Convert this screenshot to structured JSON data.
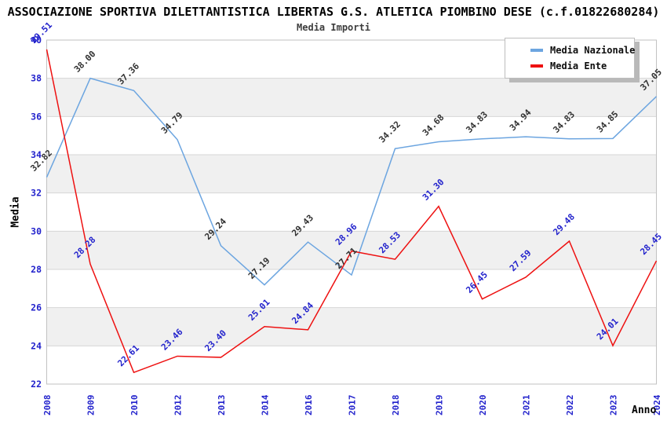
{
  "chart_data": {
    "type": "line",
    "title": "ASSOCIAZIONE SPORTIVA DILETTANTISTICA LIBERTAS G.S. ATLETICA PIOMBINO DESE (c.f.01822680284)",
    "subtitle": "Media Importi",
    "xlabel": "Anno",
    "ylabel": "Media",
    "categories": [
      "2008",
      "2009",
      "2010",
      "2012",
      "2013",
      "2014",
      "2016",
      "2017",
      "2018",
      "2019",
      "2020",
      "2021",
      "2022",
      "2023",
      "2024"
    ],
    "series": [
      {
        "name": "Media Nazionale",
        "color": "#6CA5E0",
        "label_color": "#303030",
        "values": [
          32.82,
          38.0,
          37.36,
          34.79,
          29.24,
          27.19,
          29.43,
          27.71,
          34.32,
          34.68,
          34.83,
          34.94,
          34.83,
          34.85,
          37.05
        ]
      },
      {
        "name": "Media Ente",
        "color": "#EE1111",
        "label_color": "#2222CC",
        "values": [
          39.51,
          28.28,
          22.61,
          23.46,
          23.4,
          25.01,
          24.84,
          28.96,
          28.53,
          31.3,
          26.45,
          27.59,
          29.48,
          24.01,
          28.45
        ]
      }
    ],
    "ylim": [
      22,
      40
    ],
    "ytick_step": 2,
    "grid": "horizontal",
    "bands": "alternating-gray",
    "legend_position": "top-right",
    "value_labels": "two-decimals-rotated-45"
  },
  "style": {
    "axis_tick_color": "#2222CC",
    "band_color": "#F0F0F0",
    "grid_color": "#D6D6D6",
    "plot_border_color": "#C2C2C2",
    "legend_border_color": "#BDBDBD",
    "legend_shadow_color": "#B9B9B9",
    "title_color": "#000000",
    "subtitle_color": "#3D3D3D"
  }
}
